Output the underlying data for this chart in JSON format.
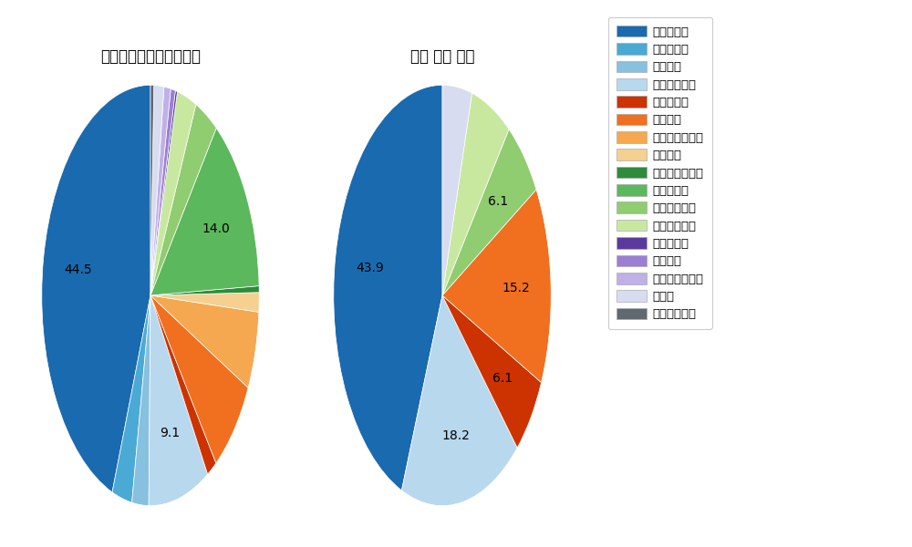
{
  "left_title": "パ・リーグ全プレイヤー",
  "right_title": "茶谷 健太 選手",
  "pitch_types": [
    "ストレート",
    "ツーシーム",
    "シュート",
    "カットボール",
    "スプリット",
    "フォーク",
    "チェンジアップ",
    "シンカー",
    "高速スライダー",
    "スライダー",
    "縦スライダー",
    "パワーカーブ",
    "スクリュー",
    "ナックル",
    "ナックルカーブ",
    "カーブ",
    "スローカーブ"
  ],
  "colors": [
    "#1a6ab0",
    "#4aaad5",
    "#88c0e0",
    "#b8d8ee",
    "#cc3300",
    "#f07020",
    "#f5a850",
    "#f5d090",
    "#2e8b3c",
    "#5cb85c",
    "#90cc70",
    "#c8e8a0",
    "#5b3a9e",
    "#9b7fd4",
    "#c0b0e8",
    "#d8dcf0",
    "#606870"
  ],
  "left_values": [
    44.5,
    3.0,
    2.5,
    9.1,
    1.5,
    7.5,
    6.0,
    1.5,
    0.5,
    14.0,
    3.5,
    2.9,
    0.3,
    0.7,
    1.0,
    1.5,
    0.5
  ],
  "left_show_label": [
    true,
    false,
    false,
    true,
    false,
    false,
    false,
    false,
    false,
    true,
    false,
    false,
    false,
    false,
    false,
    false,
    false
  ],
  "right_values": [
    43.9,
    0,
    0,
    18.2,
    6.1,
    15.2,
    0,
    0,
    0,
    0,
    6.1,
    6.1,
    0,
    0,
    0,
    4.4,
    0
  ],
  "right_show_label": [
    true,
    false,
    false,
    true,
    true,
    true,
    false,
    false,
    false,
    false,
    true,
    false,
    false,
    false,
    false,
    false,
    false
  ],
  "background_color": "#ffffff",
  "label_fontsize": 10,
  "title_fontsize": 12,
  "pie_aspect": 0.75
}
